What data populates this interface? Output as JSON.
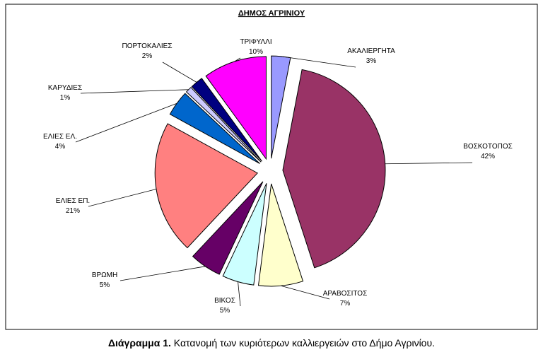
{
  "chart_data": {
    "type": "pie",
    "title": "ΔΗΜΟΣ ΑΓΡΙΝΙΟΥ",
    "categories": [
      "ΑΚΑΛΙΕΡΓΗΤΑ",
      "ΒΟΣΚΟΤΟΠΟΣ",
      "ΑΡΑΒΟΣΙΤΟΣ",
      "ΒΙΚΟΣ",
      "ΒΡΩΜΗ",
      "ΕΛΙΕΣ ΕΠ.",
      "ΕΛΙΕΣ ΕΛ.",
      "ΚΑΡΥΔΙΕΣ",
      "ΠΟΡΤΟΚΑΛΙΕΣ",
      "ΤΡΙΦΥΛΛΙ"
    ],
    "values": [
      3,
      42,
      7,
      5,
      5,
      21,
      4,
      1,
      2,
      10
    ],
    "value_labels": [
      "3%",
      "42%",
      "7%",
      "5%",
      "5%",
      "21%",
      "4%",
      "1%",
      "2%",
      "10%"
    ],
    "colors": [
      "#9999ff",
      "#993366",
      "#ffffcc",
      "#ccffff",
      "#660066",
      "#ff8080",
      "#0066cc",
      "#ccccff",
      "#000080",
      "#ff00ff"
    ]
  },
  "caption": {
    "label": "Διάγραμμα 1.",
    "text": "Κατανομή των κυριότερων καλλιεργειών στο Δήμο Αγρινίου."
  }
}
